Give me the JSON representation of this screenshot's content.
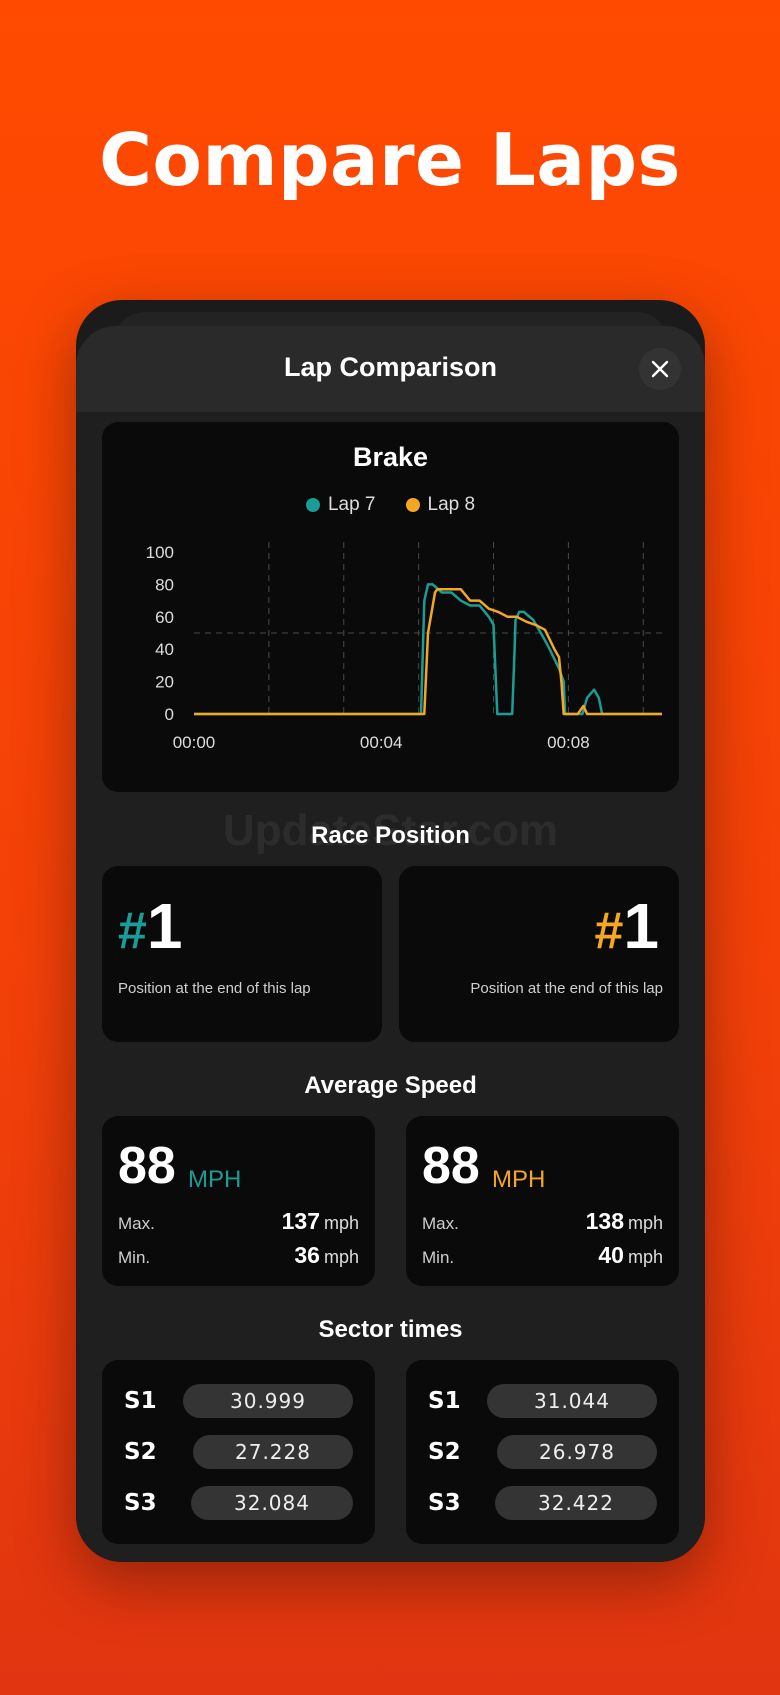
{
  "headline": "Compare Laps",
  "sheet": {
    "title": "Lap Comparison"
  },
  "colors": {
    "lap7": "#1a9d96",
    "lap8": "#f5a623",
    "background": "#ff4a00"
  },
  "icons": {
    "close": "close-icon"
  },
  "chart_data": {
    "type": "line",
    "title": "Brake",
    "xlabel": "",
    "ylabel": "",
    "ylim": [
      0,
      100
    ],
    "yticks": [
      "100",
      "80",
      "60",
      "40",
      "20",
      "0"
    ],
    "xticks": [
      "00:00",
      "00:04",
      "00:08"
    ],
    "x_range_seconds": [
      0,
      10
    ],
    "reference_line": 50,
    "grid": "vertical dashed",
    "legend_position": "top",
    "series": [
      {
        "name": "Lap 7",
        "color": "#1a9d96",
        "x": [
          0,
          4.85,
          4.92,
          5.0,
          5.1,
          5.3,
          5.5,
          5.7,
          5.9,
          6.1,
          6.3,
          6.4,
          6.45,
          6.48,
          6.5,
          6.55,
          6.8,
          6.85,
          6.87,
          6.95,
          7.05,
          7.25,
          7.45,
          7.6,
          7.8,
          7.9,
          7.93,
          8.0,
          8.3,
          8.4,
          8.55,
          8.65,
          8.72,
          10
        ],
        "y": [
          0,
          0,
          70,
          80,
          80,
          75,
          75,
          70,
          67,
          67,
          60,
          55,
          20,
          0,
          0,
          0,
          0,
          40,
          58,
          63,
          63,
          58,
          48,
          40,
          28,
          20,
          0,
          0,
          0,
          10,
          15,
          10,
          0,
          0
        ]
      },
      {
        "name": "Lap 8",
        "color": "#f5a623",
        "x": [
          0,
          4.92,
          5.0,
          5.15,
          5.2,
          5.5,
          5.7,
          5.9,
          6.1,
          6.3,
          6.5,
          6.7,
          6.9,
          7.1,
          7.3,
          7.5,
          7.7,
          7.8,
          7.85,
          7.9,
          8.2,
          8.32,
          8.4,
          10
        ],
        "y": [
          0,
          0,
          50,
          75,
          77,
          77,
          77,
          70,
          70,
          65,
          63,
          60,
          60,
          57,
          55,
          52,
          40,
          35,
          20,
          0,
          0,
          5,
          0,
          0
        ]
      }
    ]
  },
  "race_position": {
    "title": "Race Position",
    "lap7": {
      "number": "1",
      "hash": "#",
      "desc": "Position at the end of this lap"
    },
    "lap8": {
      "number": "1",
      "hash": "#",
      "desc": "Position at the end of this lap"
    }
  },
  "average_speed": {
    "title": "Average Speed",
    "lap7": {
      "avg": "88",
      "unit": "MPH",
      "max_label": "Max.",
      "max": "137",
      "min_label": "Min.",
      "min": "36",
      "small_unit": "mph"
    },
    "lap8": {
      "avg": "88",
      "unit": "MPH",
      "max_label": "Max.",
      "max": "138",
      "min_label": "Min.",
      "min": "40",
      "small_unit": "mph"
    }
  },
  "sector_times": {
    "title": "Sector times",
    "lap7": [
      {
        "label": "S1",
        "time": "30.999"
      },
      {
        "label": "S2",
        "time": "27.228"
      },
      {
        "label": "S3",
        "time": "32.084"
      }
    ],
    "lap8": [
      {
        "label": "S1",
        "time": "31.044"
      },
      {
        "label": "S2",
        "time": "26.978"
      },
      {
        "label": "S3",
        "time": "32.422"
      }
    ]
  }
}
